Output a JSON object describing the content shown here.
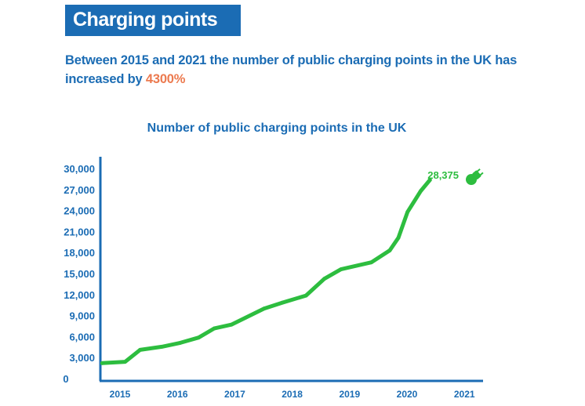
{
  "header": {
    "title": "Charging points",
    "subtitle_main": "Between 2015 and 2021 the number of public charging points in the UK has increased by ",
    "subtitle_highlight": "4300%"
  },
  "colors": {
    "brand": "#1b6cb4",
    "line": "#2dbd3f",
    "highlight": "#ec7a4f"
  },
  "chart_data": {
    "type": "line",
    "title": "Number of public charging points in the UK",
    "xlabel": "",
    "ylabel": "",
    "ylim": [
      0,
      30000
    ],
    "yticks": [
      "0",
      "3,000",
      "6,000",
      "9,000",
      "12,000",
      "15,000",
      "18,000",
      "21,000",
      "24,000",
      "27,000",
      "30,000"
    ],
    "xticks": [
      "2015",
      "2016",
      "2017",
      "2018",
      "2019",
      "2020",
      "2021"
    ],
    "grid": false,
    "series": [
      {
        "x": [
          2014.69,
          2015.09,
          2015.35,
          2015.73,
          2016.05,
          2016.37,
          2016.64,
          2016.94,
          2017.19,
          2017.51,
          2017.83,
          2018.24,
          2018.56,
          2018.85,
          2019.38,
          2019.7,
          2019.85,
          2020.01,
          2020.24,
          2020.4
        ],
        "values": [
          2200,
          2400,
          4100,
          4550,
          5100,
          5850,
          7150,
          7700,
          8700,
          10000,
          10850,
          11850,
          14250,
          15600,
          16600,
          18300,
          20100,
          23800,
          26800,
          28375
        ]
      }
    ],
    "end_label": "28,375",
    "end_icon": "plug-icon"
  }
}
